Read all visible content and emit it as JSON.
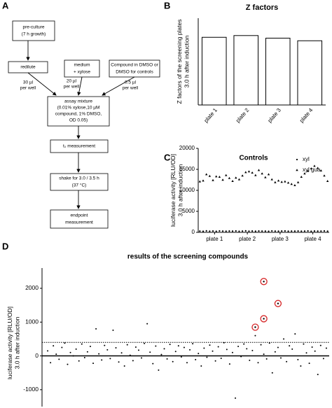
{
  "panels": {
    "a": "A",
    "b": "B",
    "c": "C",
    "d": "D"
  },
  "flowchart": {
    "nodes": [
      {
        "lines": [
          "pre-culture",
          "(7 h growth)"
        ]
      },
      {
        "lines": [
          "redilute"
        ]
      },
      {
        "lines": [
          "medium",
          "+ xylose"
        ]
      },
      {
        "lines": [
          "Compound in DMSO or",
          "DMSO for controls"
        ]
      },
      {
        "lines": [
          "assay mixture",
          "(0.01% xylose,10 µM",
          "compound, 1% DMSO,",
          "OD 0.05)"
        ]
      },
      {
        "lines": [
          "t₀ measurement"
        ]
      },
      {
        "lines": [
          "shake for 3.0 / 3.5 h",
          "(37 °C)"
        ]
      },
      {
        "lines": [
          "endpoint",
          "measurement"
        ]
      }
    ],
    "edge_labels": [
      {
        "lines": [
          "30 µl",
          "per well"
        ]
      },
      {
        "lines": [
          "20 µl",
          "per well"
        ]
      },
      {
        "lines": [
          "0.5 µl",
          "per well"
        ]
      }
    ]
  },
  "chart_data": [
    {
      "type": "bar",
      "title": "Z factors",
      "ylabel": [
        "Z factors of the screening plates",
        "3.0 h after induction"
      ],
      "categories": [
        "plate 1",
        "plate 2",
        "plate 3",
        "plate 4"
      ],
      "values": [
        0.78,
        0.8,
        0.77,
        0.74
      ],
      "color": "#ffffff",
      "ylim": [
        0,
        1
      ]
    },
    {
      "type": "scatter",
      "title": "Controls",
      "ylabel": [
        "luciferase activity [RLU/OD]",
        "3.0 h after induction"
      ],
      "x": [
        1,
        2,
        3,
        4,
        5,
        6,
        7,
        8,
        9,
        10,
        11,
        12,
        13,
        14,
        15,
        16,
        17,
        18,
        19,
        20,
        21,
        22,
        23,
        24,
        25,
        26,
        27,
        28,
        29,
        30,
        31,
        32,
        33,
        34,
        35,
        36,
        37,
        38,
        39,
        40
      ],
      "xlim": [
        0.5,
        40.5
      ],
      "xticks": [
        {
          "value": 5.5,
          "label": "plate 1"
        },
        {
          "value": 15.5,
          "label": "plate 2"
        },
        {
          "value": 25.5,
          "label": "plate 3"
        },
        {
          "value": 35.5,
          "label": "plate 4"
        }
      ],
      "ylim": [
        0,
        20000
      ],
      "yticks": [
        0,
        5000,
        10000,
        15000,
        20000
      ],
      "series": [
        {
          "name": "xyl",
          "marker": "circle",
          "color": "#000000",
          "values": [
            300,
            250,
            350,
            280,
            320,
            260,
            340,
            300,
            270,
            310,
            290,
            330,
            260,
            300,
            350,
            280,
            310,
            270,
            320,
            300,
            290,
            260,
            340,
            300,
            280,
            310,
            330,
            270,
            300,
            290,
            320,
            280,
            300,
            340,
            260,
            310,
            290,
            300,
            330,
            280
          ]
        },
        {
          "name": "xyl gua",
          "marker": "triangle",
          "color": "#000000",
          "values": [
            12100,
            12300,
            13800,
            13400,
            12400,
            13300,
            13200,
            12500,
            13600,
            12900,
            12200,
            13000,
            12600,
            13500,
            14300,
            14500,
            14200,
            13600,
            14800,
            14000,
            13100,
            13800,
            12600,
            11900,
            12300,
            12000,
            12100,
            11800,
            11500,
            11200,
            11900,
            13200,
            14000,
            14600,
            15200,
            15800,
            15300,
            14700,
            13500,
            12200
          ]
        }
      ],
      "legend": "upper-right"
    },
    {
      "type": "scatter",
      "title": "results of the screening compounds",
      "ylabel": [
        "luciferase activity [RLU/OD]",
        "3.0 h after induction"
      ],
      "xlim": [
        0,
        100
      ],
      "ylim": [
        -1500,
        2600
      ],
      "yticks": [
        -1000,
        0,
        1000,
        2000
      ],
      "threshold": 400,
      "color": "#000000",
      "hit_color": "#d62728",
      "x": [
        1,
        2,
        3,
        4,
        5,
        6,
        7,
        8,
        9,
        10,
        11,
        12,
        13,
        14,
        15,
        16,
        17,
        18,
        19,
        20,
        21,
        22,
        23,
        24,
        25,
        26,
        27,
        28,
        29,
        30,
        31,
        32,
        33,
        34,
        35,
        36,
        37,
        38,
        39,
        40,
        41,
        42,
        43,
        44,
        45,
        46,
        47,
        48,
        49,
        50,
        51,
        52,
        53,
        54,
        55,
        56,
        57,
        58,
        59,
        60,
        61,
        62,
        63,
        64,
        65,
        66,
        67,
        68,
        69,
        70,
        71,
        72,
        73,
        74,
        75,
        76,
        77,
        78,
        79,
        80,
        81,
        82,
        83,
        84,
        85,
        86,
        87,
        88,
        89,
        90,
        91,
        92,
        93,
        94,
        95,
        96,
        97,
        98,
        99
      ],
      "values": [
        150,
        -200,
        300,
        50,
        -100,
        250,
        380,
        -250,
        100,
        0,
        200,
        -150,
        350,
        -50,
        120,
        280,
        -220,
        800,
        60,
        -120,
        310,
        180,
        -80,
        760,
        240,
        -180,
        90,
        -300,
        330,
        20,
        -140,
        260,
        170,
        -60,
        370,
        950,
        110,
        -230,
        290,
        -420,
        40,
        210,
        -90,
        340,
        -170,
        130,
        300,
        -30,
        250,
        -200,
        180,
        360,
        -110,
        70,
        -300,
        230,
        -40,
        320,
        140,
        -150,
        270,
        -70,
        390,
        190,
        -240,
        100,
        -1250,
        280,
        -20,
        350,
        210,
        -130,
        160,
        600,
        -200,
        330,
        50,
        -90,
        380,
        -500,
        120,
        250,
        -60,
        500,
        -170,
        300,
        200,
        650,
        -110,
        -300,
        350,
        90,
        -220,
        260,
        140,
        -550,
        310,
        -80,
        230
      ],
      "hits": {
        "x": [
          74,
          77,
          77,
          82
        ],
        "values": [
          850,
          1100,
          2200,
          1550
        ]
      }
    }
  ]
}
